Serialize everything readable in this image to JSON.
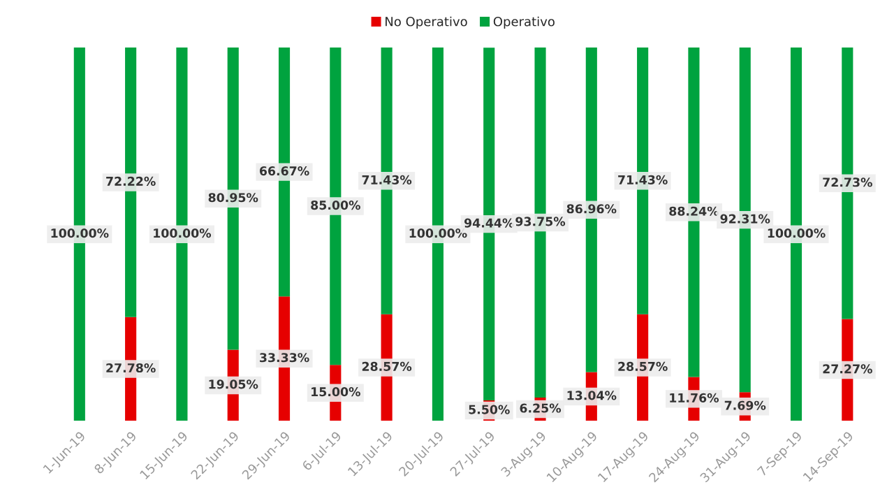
{
  "chart_data": {
    "type": "bar",
    "stacked": true,
    "legend": "top",
    "grid": false,
    "categories": [
      "1-Jun-19",
      "8-Jun-19",
      "15-Jun-19",
      "22-Jun-19",
      "29-Jun-19",
      "6-Jul-19",
      "13-Jul-19",
      "20-Jul-19",
      "27-Jul-19",
      "3-Aug-19",
      "10-Aug-19",
      "17-Aug-19",
      "24-Aug-19",
      "31-Aug-19",
      "7-Sep-19",
      "14-Sep-19"
    ],
    "series": [
      {
        "name": "No Operativo",
        "color": "#e60000",
        "values": [
          null,
          27.78,
          null,
          19.05,
          33.33,
          15.0,
          28.57,
          null,
          5.5,
          6.25,
          13.04,
          28.57,
          11.76,
          7.69,
          null,
          27.27
        ],
        "value_labels": [
          null,
          "27.78%",
          null,
          "19.05%",
          "33.33%",
          "15.00%",
          "28.57%",
          null,
          "5.50%",
          "6.25%",
          "13.04%",
          "28.57%",
          "11.76%",
          "7.69%",
          null,
          "27.27%"
        ]
      },
      {
        "name": "Operativo",
        "color": "#00a33f",
        "values": [
          100,
          72.22,
          100,
          80.95,
          66.67,
          85.0,
          71.43,
          100,
          94.44,
          93.75,
          86.96,
          71.43,
          88.24,
          92.31,
          100,
          72.73
        ],
        "value_labels": [
          "100.00%",
          "72.22%",
          "100.00%",
          "80.95%",
          "66.67%",
          "85.00%",
          "71.43%",
          "100.00%",
          "94.44%",
          "93.75%",
          "86.96%",
          "71.43%",
          "88.24%",
          "92.31%",
          "100.00%",
          "72.73%"
        ]
      }
    ]
  }
}
